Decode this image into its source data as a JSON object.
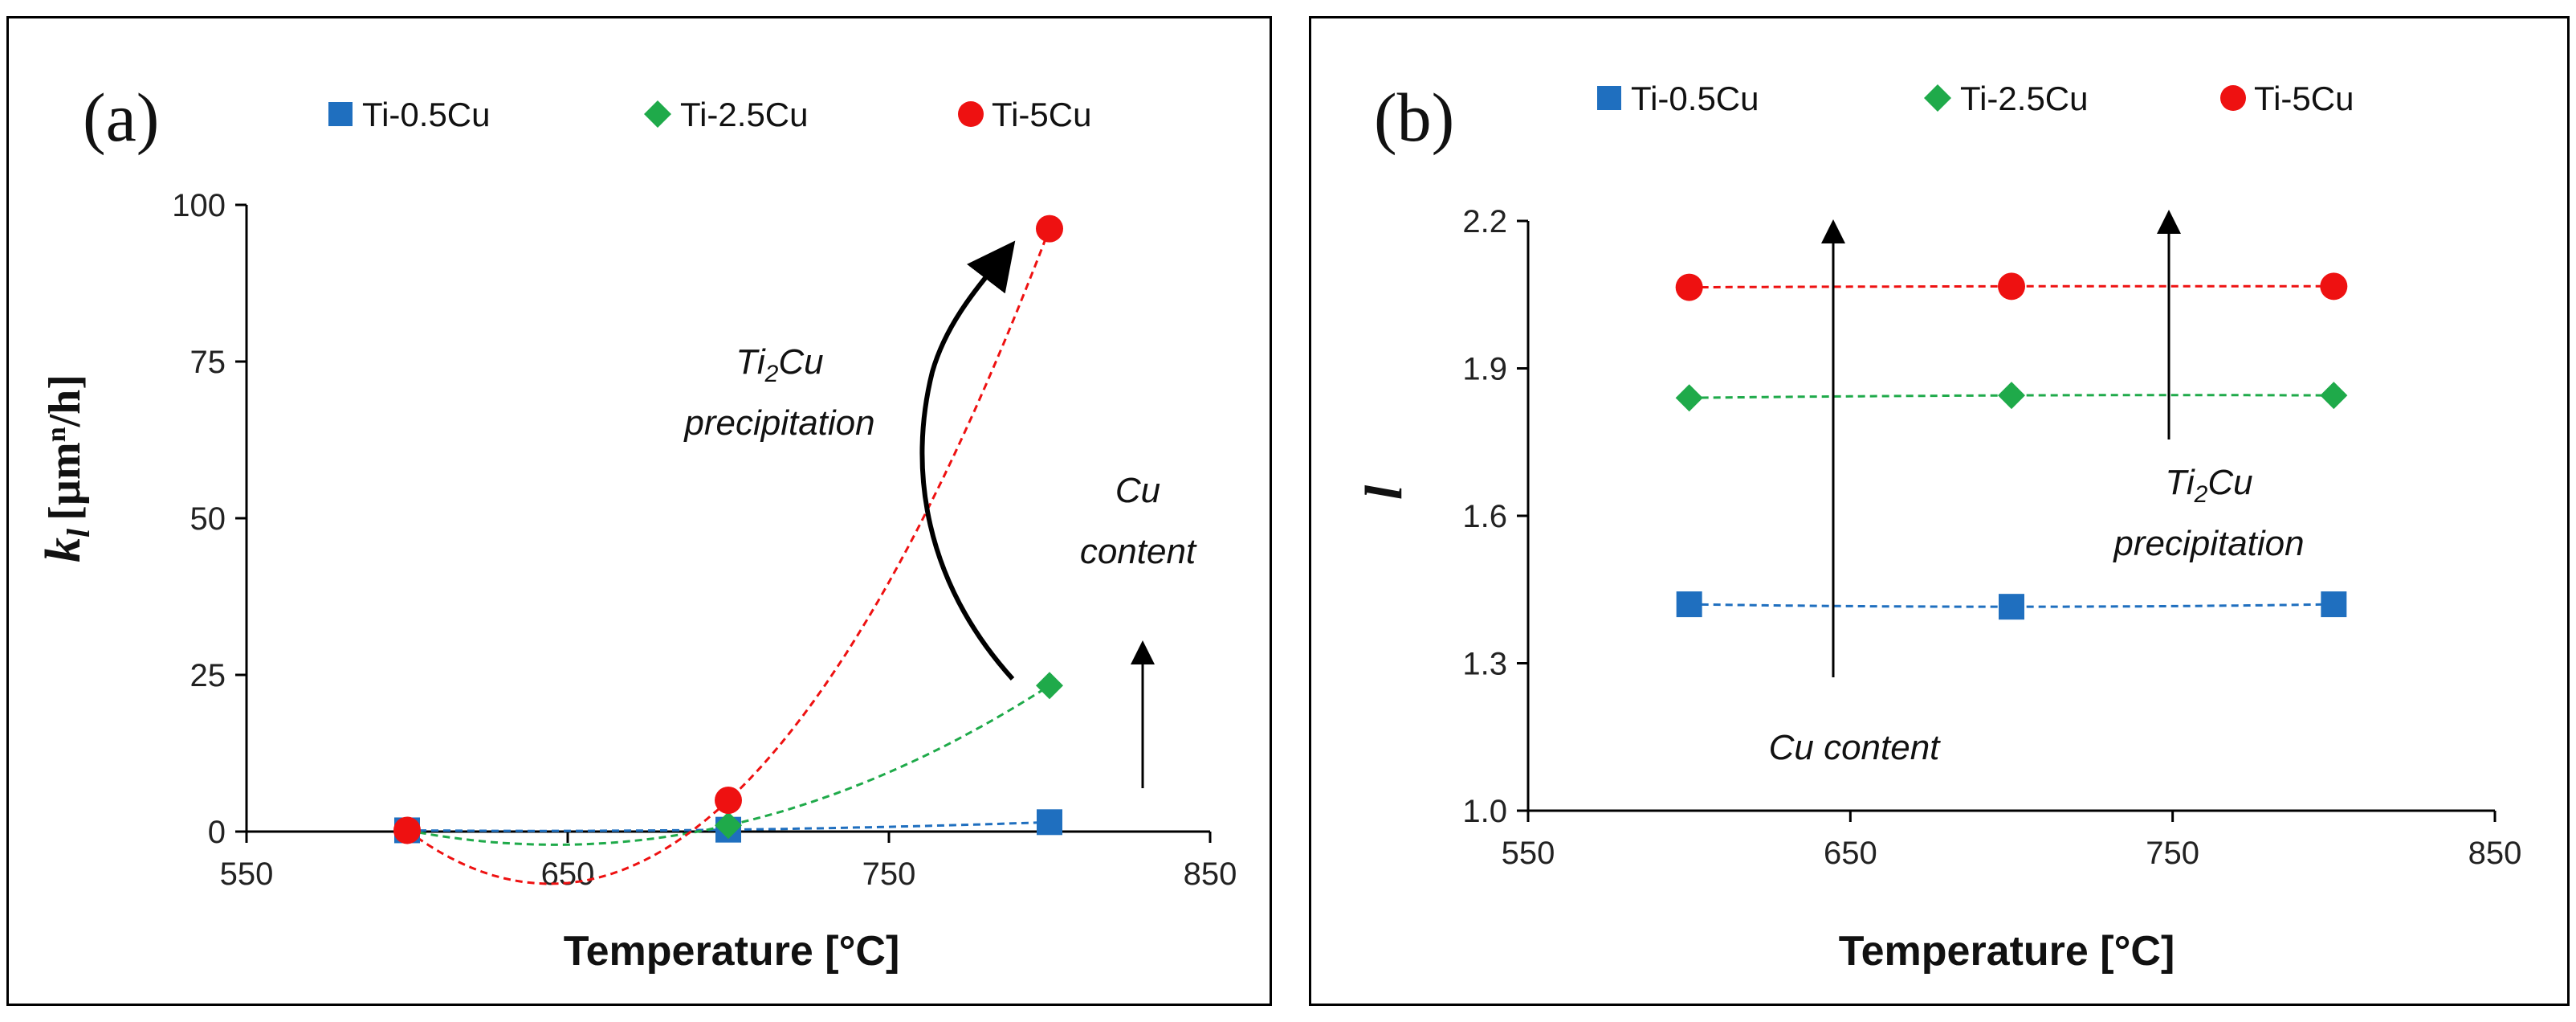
{
  "chart_data": [
    {
      "type": "scatter",
      "panel_label": "(a)",
      "title": "",
      "xlabel": "Temperature [°C]",
      "ylabel_symbol": "k",
      "ylabel_subscript": "l",
      "ylabel_units_pre": "[µm",
      "ylabel_units_sup": "n",
      "ylabel_units_post": "/h]",
      "xlim": [
        550,
        850
      ],
      "ylim": [
        0,
        100
      ],
      "xticks": [
        "550",
        "650",
        "750",
        "850"
      ],
      "yticks": [
        "0",
        "25",
        "50",
        "75",
        "100"
      ],
      "legend_position": "top",
      "series": [
        {
          "name": "Ti-0.5Cu",
          "marker": "square",
          "color": "#1f6fbf",
          "x": [
            600,
            700,
            800
          ],
          "y": [
            0.2,
            0.3,
            1.5
          ]
        },
        {
          "name": "Ti-2.5Cu",
          "marker": "diamond",
          "color": "#1faa4a",
          "x": [
            600,
            700,
            800
          ],
          "y": [
            0.2,
            1.0,
            23.3
          ]
        },
        {
          "name": "Ti-5Cu",
          "marker": "circle",
          "color": "#ee1111",
          "x": [
            600,
            700,
            800
          ],
          "y": [
            0.2,
            5.0,
            96.2
          ]
        }
      ],
      "annotations": {
        "precip_line1": "Ti",
        "precip_sub": "2",
        "precip_line1_post": "Cu",
        "precip_line2": "precipitation",
        "cu_line1": "Cu",
        "cu_line2": "content"
      }
    },
    {
      "type": "scatter",
      "panel_label": "(b)",
      "title": "",
      "xlabel": "Temperature [°C]",
      "ylabel_symbol": "l",
      "xlim": [
        550,
        850
      ],
      "ylim": [
        1.0,
        2.2
      ],
      "xticks": [
        "550",
        "650",
        "750",
        "850"
      ],
      "yticks": [
        "1.0",
        "1.3",
        "1.6",
        "1.9",
        "2.2"
      ],
      "legend_position": "top",
      "series": [
        {
          "name": "Ti-0.5Cu",
          "marker": "square",
          "color": "#1f6fbf",
          "x": [
            600,
            700,
            800
          ],
          "y": [
            1.42,
            1.415,
            1.42
          ]
        },
        {
          "name": "Ti-2.5Cu",
          "marker": "diamond",
          "color": "#1faa4a",
          "x": [
            600,
            700,
            800
          ],
          "y": [
            1.84,
            1.845,
            1.845
          ]
        },
        {
          "name": "Ti-5Cu",
          "marker": "circle",
          "color": "#ee1111",
          "x": [
            600,
            700,
            800
          ],
          "y": [
            2.065,
            2.067,
            2.067
          ]
        }
      ],
      "annotations": {
        "precip_line1": "Ti",
        "precip_sub": "2",
        "precip_line1_post": "Cu",
        "precip_line2": "precipitation",
        "cu_text": "Cu content"
      }
    }
  ]
}
